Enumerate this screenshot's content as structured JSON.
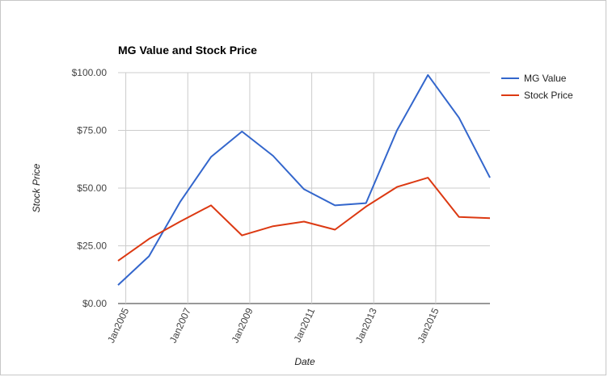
{
  "chart_data": {
    "type": "line",
    "title": "MG Value and Stock Price",
    "xlabel": "Date",
    "ylabel": "Stock Price",
    "x_tick_labels": [
      "Jan2005",
      "Jan2007",
      "Jan2009",
      "Jan2011",
      "Jan2013",
      "Jan2015"
    ],
    "y_tick_labels": [
      "$0.00",
      "$25.00",
      "$50.00",
      "$75.00",
      "$100.00"
    ],
    "y_ticks": [
      0,
      25,
      50,
      75,
      100
    ],
    "ylim": [
      0,
      100
    ],
    "xlim": [
      "2004-10",
      "2016-10"
    ],
    "grid": true,
    "legend_position": "right",
    "x": [
      "2004-10",
      "2005-10",
      "2006-10",
      "2007-10",
      "2008-10",
      "2009-10",
      "2010-10",
      "2011-10",
      "2012-10",
      "2013-10",
      "2014-10",
      "2015-10",
      "2016-10"
    ],
    "series": [
      {
        "name": "MG Value",
        "color": "#3366cc",
        "values": [
          8,
          20.5,
          44,
          63.5,
          74.5,
          64,
          49.5,
          42.5,
          43.5,
          75,
          99,
          80.5,
          54.5
        ]
      },
      {
        "name": "Stock Price",
        "color": "#dc3912",
        "values": [
          18.5,
          28,
          35.5,
          42.5,
          29.5,
          33.5,
          35.5,
          32,
          42,
          50.5,
          54.5,
          37.5,
          37
        ]
      }
    ]
  }
}
